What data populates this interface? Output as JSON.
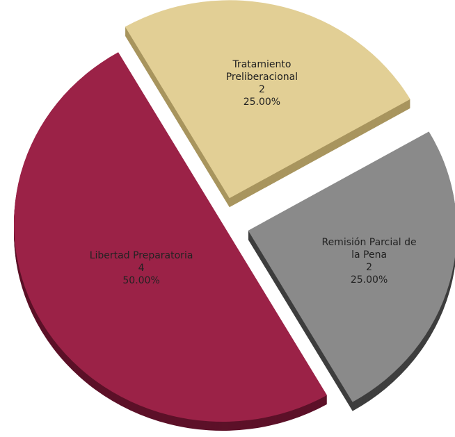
{
  "chart_data": {
    "type": "pie",
    "categories": [
      "Libertad Preparatoria",
      "Tratamiento Preliberacional",
      "Remisión Parcial de la Pena"
    ],
    "values": [
      4,
      2,
      2
    ],
    "percentages": [
      50,
      25,
      25
    ],
    "percentage_labels": [
      "50.00%",
      "25.00%",
      "25.00%"
    ],
    "colors": [
      "#9b2247",
      "#e2cf95",
      "#8a8a8a"
    ],
    "side_colors": [
      "#5c1128",
      "#a8955e",
      "#3e3e3e"
    ]
  }
}
